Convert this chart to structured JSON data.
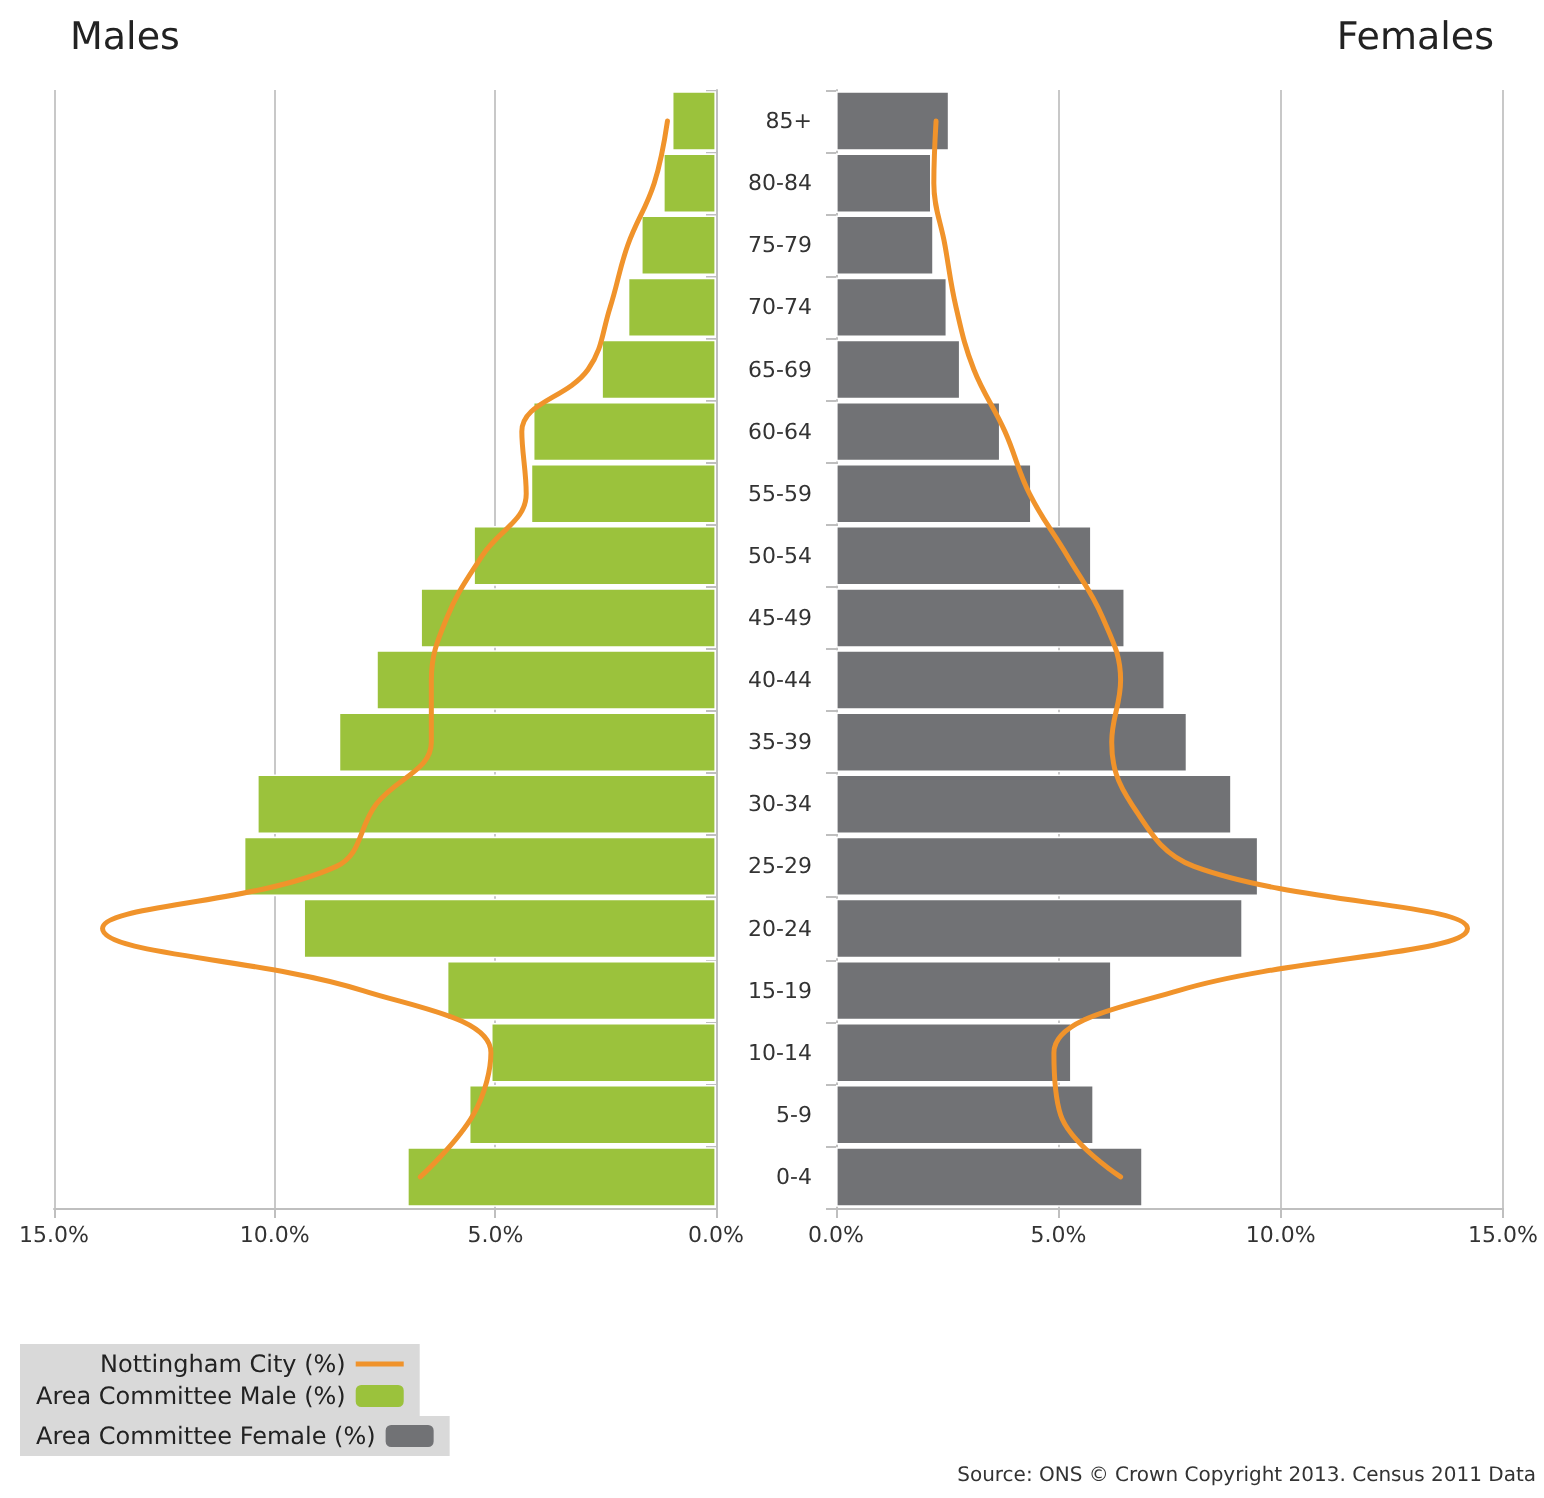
{
  "chart_data": [
    {
      "type": "bar",
      "orientation": "horizontal",
      "title": "Males",
      "categories": [
        null,
        null,
        null,
        null,
        null,
        null,
        null,
        null,
        null,
        null,
        null,
        null,
        null,
        null,
        null,
        null,
        null,
        null
      ],
      "series": [
        {
          "type": "line",
          "name": "Nottingham City (%)",
          "color": "#f0932b",
          "values": [
            1.1,
            1.4,
            2.0,
            2.4,
            2.9,
            4.4,
            4.3,
            5.3,
            6.1,
            6.45,
            6.45,
            7.7,
            8.6,
            13.9,
            8.0,
            5.1,
            5.5,
            6.7
          ]
        },
        {
          "name": "Area Committee Male (%)",
          "color": "#9bc23c",
          "values": [
            1.0,
            1.2,
            1.7,
            2.0,
            2.6,
            4.15,
            4.2,
            5.5,
            6.7,
            7.7,
            8.55,
            10.4,
            10.7,
            9.35,
            6.1,
            5.1,
            5.6,
            7.0
          ]
        }
      ],
      "xlim": [
        15,
        0
      ],
      "xticks": [
        {
          "value": 15,
          "label": "15.0%"
        },
        {
          "value": 10,
          "label": "10.0%"
        },
        {
          "value": 5,
          "label": "5.0%"
        },
        {
          "value": 0,
          "label": "0.0%"
        }
      ],
      "grid": "x",
      "legend": "bottom left",
      "tick_labels": "x",
      "marker": "none",
      "line_style": "solid"
    },
    {
      "type": "bar",
      "orientation": "horizontal",
      "title": "Females",
      "categories": [
        "85+",
        "80-84",
        "75-79",
        "70-74",
        "65-69",
        "60-64",
        "55-59",
        "50-54",
        "45-49",
        "40-44",
        "35-39",
        "30-34",
        "25-29",
        "20-24",
        "15-19",
        "10-14",
        "5-9",
        "0-4"
      ],
      "series": [
        {
          "name": "Area Committee Female (%)",
          "color": "#717275",
          "values": [
            2.55,
            2.15,
            2.2,
            2.5,
            2.8,
            3.7,
            4.4,
            5.75,
            6.5,
            7.4,
            7.9,
            8.9,
            9.5,
            9.15,
            6.2,
            5.3,
            5.8,
            6.9
          ]
        },
        {
          "type": "line",
          "color": "#f0932b",
          "values": [
            2.25,
            2.2,
            2.45,
            2.7,
            3.1,
            3.8,
            4.35,
            5.2,
            6.0,
            6.4,
            6.2,
            6.65,
            8.05,
            14.2,
            7.7,
            4.9,
            5.05,
            6.4
          ]
        }
      ],
      "xlim": [
        0,
        15
      ],
      "xticks": [
        {
          "value": 0,
          "label": "0.0%"
        },
        {
          "value": 5,
          "label": "5.0%"
        },
        {
          "value": 10,
          "label": "10.0%"
        },
        {
          "value": 15,
          "label": "15.0%"
        }
      ],
      "grid": "x",
      "legend": "bottom left",
      "marker": "none",
      "line_style": "solid",
      "annotations": [
        "Source: ONS © Crown Copyright 2013. Census 2011 Data"
      ]
    }
  ]
}
